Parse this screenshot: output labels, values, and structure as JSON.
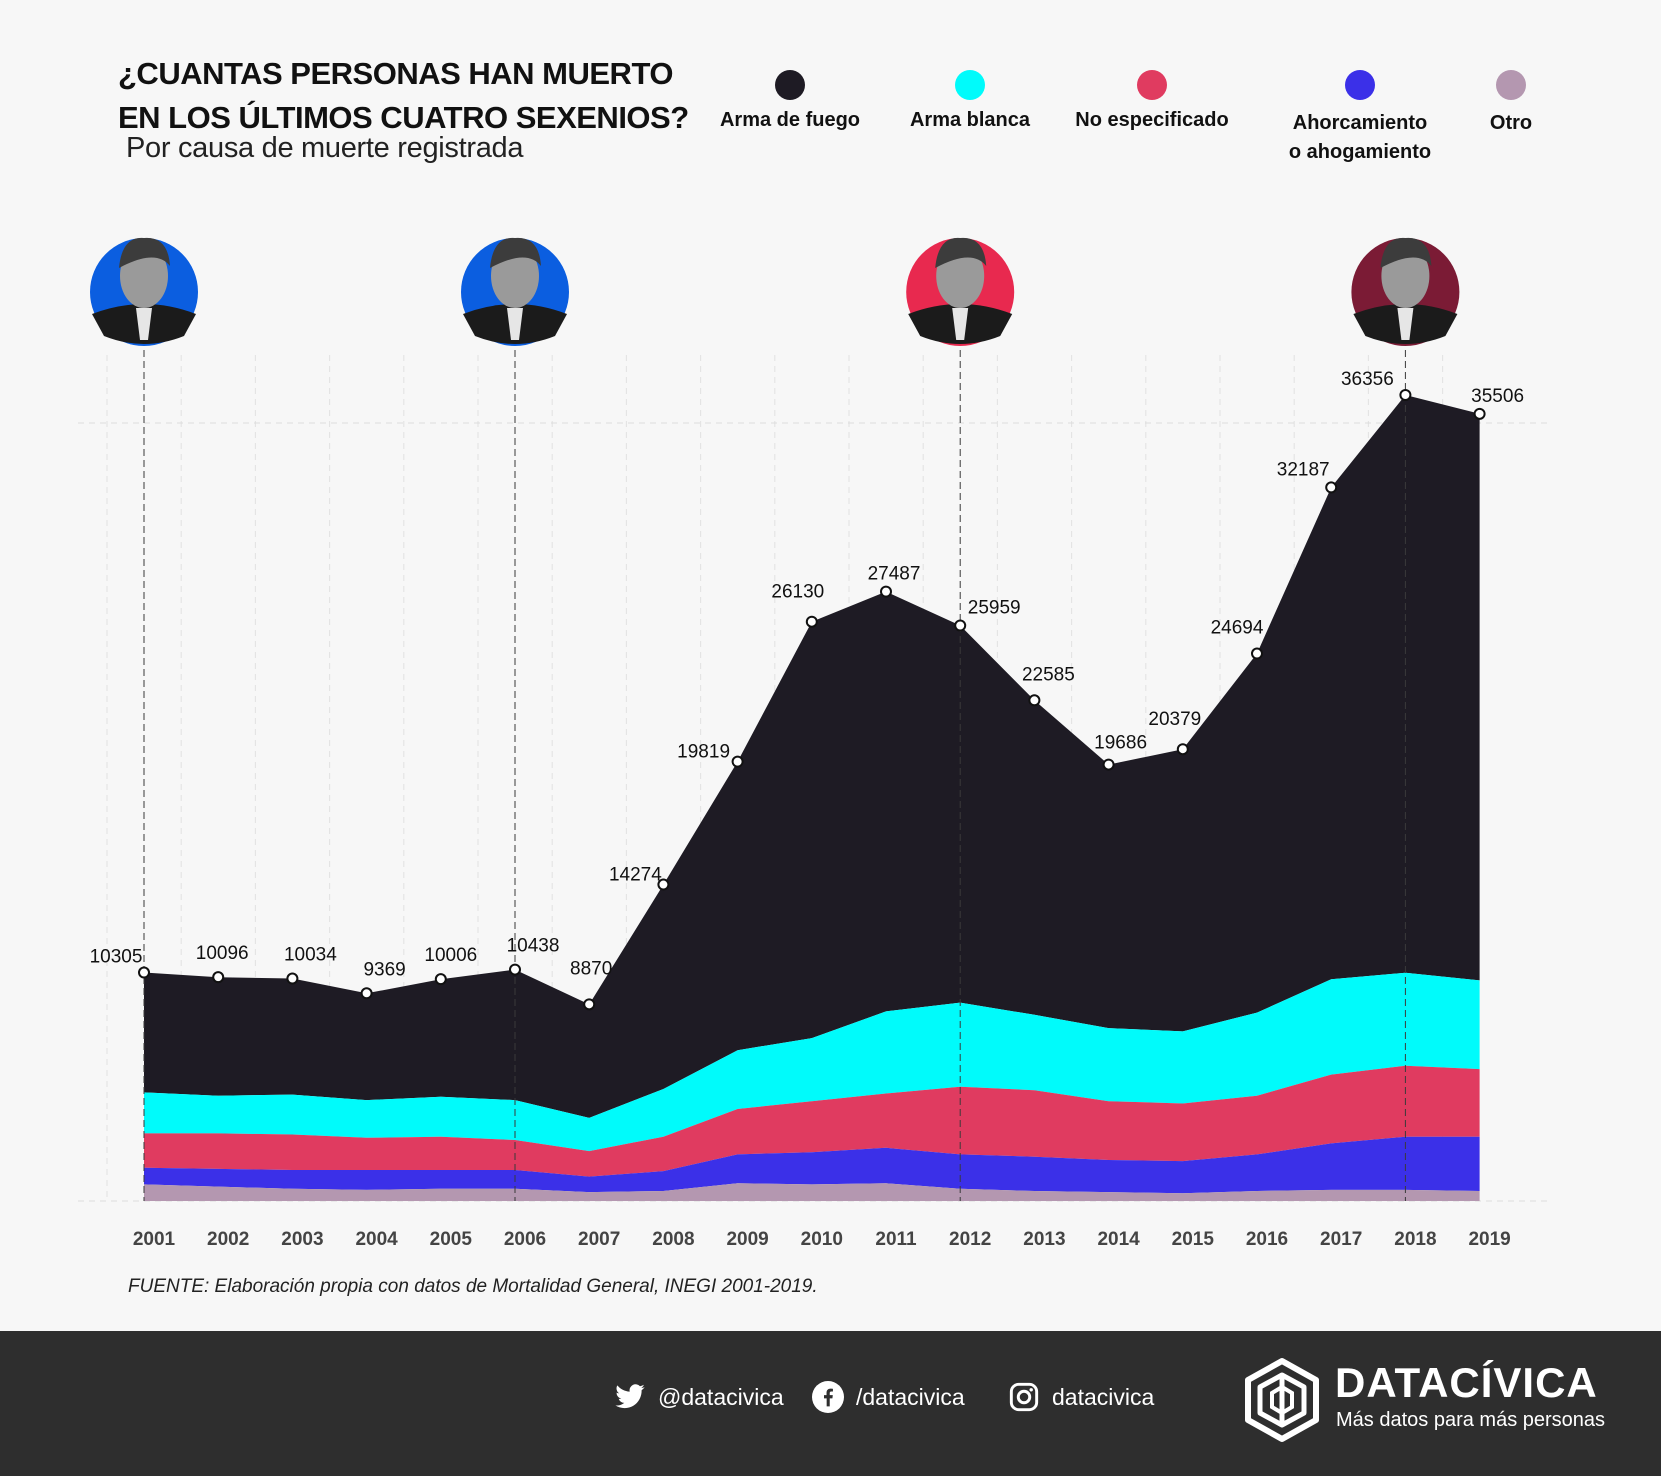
{
  "header": {
    "title": "¿CUANTAS PERSONAS HAN MUERTO\nEN LOS ÚLTIMOS CUATRO SEXENIOS?",
    "subtitle": "Por causa de muerte registrada"
  },
  "legend": [
    {
      "label": "Arma de fuego",
      "color": "#1e1b24"
    },
    {
      "label": "Arma blanca",
      "color": "#00fbfb"
    },
    {
      "label": "No especificado",
      "color": "#e03b60"
    },
    {
      "label": "Ahorcamiento\no ahogamiento",
      "color": "#3b30e8"
    },
    {
      "label": "Otro",
      "color": "#b497b0"
    }
  ],
  "presidents": [
    {
      "year": "2001",
      "color": "#0b5ee0",
      "icon": "president-portrait-fox"
    },
    {
      "year": "2006",
      "color": "#0b5ee0",
      "icon": "president-portrait-calderon"
    },
    {
      "year": "2012",
      "color": "#e8294f",
      "icon": "president-portrait-pena-nieto"
    },
    {
      "year": "2018",
      "color": "#7b1b35",
      "icon": "president-portrait-lopez-obrador"
    }
  ],
  "chart_data": {
    "type": "area",
    "stacked": true,
    "x": [
      "2001",
      "2002",
      "2003",
      "2004",
      "2005",
      "2006",
      "2007",
      "2008",
      "2009",
      "2010",
      "2011",
      "2012",
      "2013",
      "2014",
      "2015",
      "2016",
      "2017",
      "2018",
      "2019"
    ],
    "totals": [
      10305,
      10096,
      10034,
      9369,
      10006,
      10438,
      8870,
      14274,
      19819,
      26130,
      27487,
      25959,
      22585,
      19686,
      20379,
      24694,
      32187,
      36356,
      35506
    ],
    "series": [
      {
        "name": "Otro",
        "color": "#b497b0",
        "values": [
          750,
          650,
          550,
          500,
          550,
          550,
          400,
          450,
          800,
          750,
          800,
          550,
          450,
          400,
          350,
          450,
          500,
          500,
          450
        ]
      },
      {
        "name": "Ahorcamiento o ahogamiento",
        "color": "#3b30e8",
        "values": [
          750,
          800,
          850,
          900,
          850,
          850,
          700,
          900,
          1300,
          1450,
          1600,
          1550,
          1550,
          1450,
          1450,
          1650,
          2100,
          2400,
          2450
        ]
      },
      {
        "name": "No especificado",
        "color": "#e03b60",
        "values": [
          1550,
          1600,
          1600,
          1450,
          1500,
          1350,
          1150,
          1550,
          2050,
          2300,
          2450,
          3050,
          3000,
          2650,
          2600,
          2650,
          3100,
          3200,
          3050
        ]
      },
      {
        "name": "Arma blanca",
        "color": "#00fbfb",
        "values": [
          1850,
          1700,
          1800,
          1700,
          1800,
          1800,
          1500,
          2150,
          2650,
          2850,
          3700,
          3800,
          3400,
          3300,
          3250,
          3750,
          4300,
          4200,
          4000
        ]
      },
      {
        "name": "Arma de fuego",
        "color": "#1e1b24",
        "values": [
          5405,
          5346,
          5234,
          4819,
          5306,
          5888,
          5120,
          9224,
          13019,
          18780,
          18937,
          17009,
          14185,
          11886,
          12729,
          16194,
          22187,
          26056,
          25556
        ]
      }
    ],
    "ylim": [
      0,
      36356
    ],
    "grid": true,
    "sexenio_markers": [
      "2001",
      "2006",
      "2012",
      "2018"
    ]
  },
  "source": "FUENTE: Elaboración propia con datos de Mortalidad General, INEGI 2001-2019.",
  "footer": {
    "twitter": "@datacivica",
    "facebook": "/datacivica",
    "instagram": "datacivica",
    "brand_name": "DATACÍVICA",
    "brand_tagline": "Más datos para más personas"
  }
}
